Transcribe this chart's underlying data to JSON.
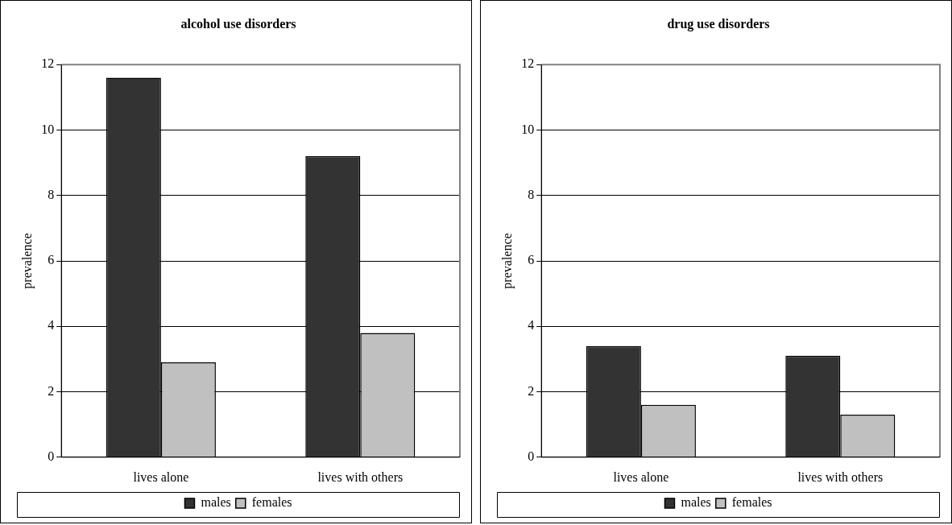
{
  "chart_data": [
    {
      "type": "bar",
      "title": "alcohol use disorders",
      "ylabel": "prevalence",
      "categories": [
        "lives alone",
        "lives with others"
      ],
      "series": [
        {
          "name": "males",
          "color": "#333333",
          "values": [
            11.6,
            9.2
          ]
        },
        {
          "name": "females",
          "color": "#c0c0c0",
          "values": [
            2.9,
            3.8
          ]
        }
      ],
      "ylim": [
        0,
        12
      ],
      "yticks": [
        0,
        2,
        4,
        6,
        8,
        10,
        12
      ],
      "grid": "y",
      "legend": "bottom"
    },
    {
      "type": "bar",
      "title": "drug use disorders",
      "ylabel": "prevalence",
      "categories": [
        "lives alone",
        "lives with others"
      ],
      "series": [
        {
          "name": "males",
          "color": "#333333",
          "values": [
            3.4,
            3.1
          ]
        },
        {
          "name": "females",
          "color": "#c0c0c0",
          "values": [
            1.6,
            1.3
          ]
        }
      ],
      "ylim": [
        0,
        12
      ],
      "yticks": [
        0,
        2,
        4,
        6,
        8,
        10,
        12
      ],
      "grid": "y",
      "legend": "bottom"
    }
  ]
}
